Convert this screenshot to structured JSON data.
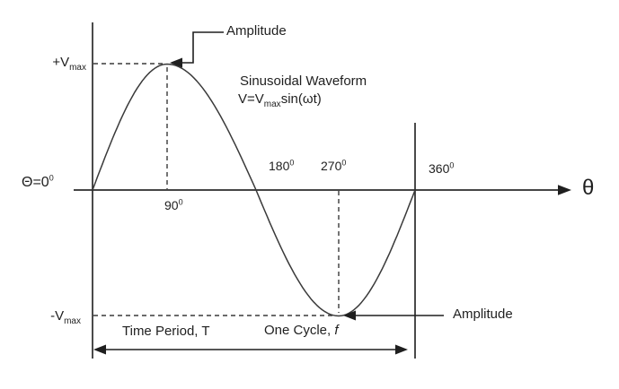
{
  "figure": {
    "title_line1": "Sinusoidal Waveform",
    "formula": {
      "prefix": "V=V",
      "sub": "max",
      "suffix": "sin(ωt)"
    },
    "axis": {
      "x_label": "θ",
      "origin_label": {
        "base": "Θ=0",
        "sup": "0"
      },
      "y_top_label": {
        "prefix": "+V",
        "sub": "max"
      },
      "y_bottom_label": {
        "prefix": "-V",
        "sub": "max"
      }
    },
    "angle_ticks": [
      {
        "base": "90",
        "sup": "0"
      },
      {
        "base": "180",
        "sup": "0"
      },
      {
        "base": "270",
        "sup": "0"
      },
      {
        "base": "360",
        "sup": "0"
      }
    ],
    "annotations": {
      "amplitude_top": "Amplitude",
      "amplitude_bottom": "Amplitude",
      "time_period": "Time Period, T",
      "one_cycle_prefix": "One Cycle, ",
      "one_cycle_italic": "f"
    }
  },
  "chart_data": {
    "type": "line",
    "title": "Sinusoidal Waveform",
    "function": "V = Vmax·sin(ωt)",
    "xlabel": "θ",
    "x_degrees": [
      0,
      90,
      180,
      270,
      360
    ],
    "v_values": [
      "0",
      "+Vmax",
      "0",
      "-Vmax",
      "0"
    ],
    "x_range_degrees": [
      0,
      360
    ],
    "grid": false,
    "line_color": "#333333"
  }
}
